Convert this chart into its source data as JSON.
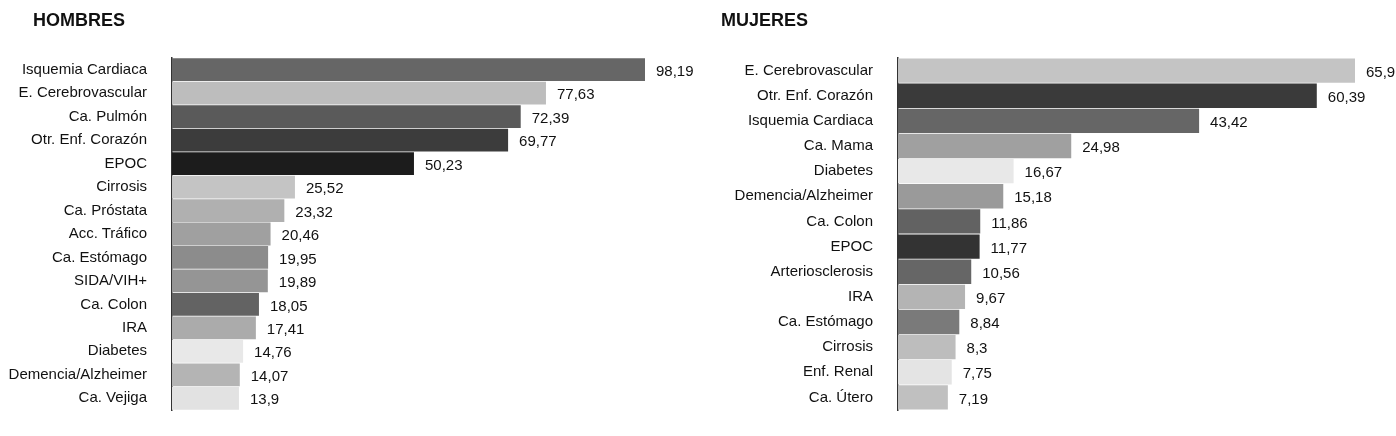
{
  "chart_data": [
    {
      "type": "bar",
      "orientation": "horizontal",
      "title": "HOMBRES",
      "tick_labels": "y",
      "categories": [
        "Isquemia Cardiaca",
        "E. Cerebrovascular",
        "Ca. Pulmón",
        "Otr. Enf. Corazón",
        "EPOC",
        "Cirrosis",
        "Ca. Próstata",
        "Acc. Tráfico",
        "Ca. Estómago",
        "SIDA/VIH+",
        "Ca. Colon",
        "IRA",
        "Diabetes",
        "Demencia/Alzheimer",
        "Ca. Vejiga"
      ],
      "values": [
        98.19,
        77.63,
        72.39,
        69.77,
        50.23,
        25.52,
        23.32,
        20.46,
        19.95,
        19.89,
        18.05,
        17.41,
        14.76,
        14.07,
        13.9
      ],
      "value_labels": [
        "98,19",
        "77,63",
        "72,39",
        "69,77",
        "50,23",
        "25,52",
        "23,32",
        "20,46",
        "19,95",
        "19,89",
        "18,05",
        "17,41",
        "14,76",
        "14,07",
        "13,9"
      ],
      "colors": [
        "#666666",
        "#bdbdbd",
        "#5a5a5a",
        "#3c3c3c",
        "#1c1c1c",
        "#c4c4c4",
        "#b0b0b0",
        "#a0a0a0",
        "#8c8c8c",
        "#959595",
        "#636363",
        "#ababab",
        "#e8e8e8",
        "#b4b4b4",
        "#e2e2e2"
      ]
    },
    {
      "type": "bar",
      "orientation": "horizontal",
      "title": "MUJERES",
      "tick_labels": "y",
      "categories": [
        "E. Cerebrovascular",
        "Otr. Enf. Corazón",
        "Isquemia Cardiaca",
        "Ca. Mama",
        "Diabetes",
        "Demencia/Alzheimer",
        "Ca. Colon",
        "EPOC",
        "Arteriosclerosis",
        "IRA",
        "Ca. Estómago",
        "Cirrosis",
        "Enf. Renal",
        "Ca. Útero"
      ],
      "values": [
        65.9,
        60.39,
        43.42,
        24.98,
        16.67,
        15.18,
        11.86,
        11.77,
        10.56,
        9.67,
        8.84,
        8.3,
        7.75,
        7.19
      ],
      "value_labels": [
        "65,9",
        "60,39",
        "43,42",
        "24,98",
        "16,67",
        "15,18",
        "11,86",
        "11,77",
        "10,56",
        "9,67",
        "8,84",
        "8,3",
        "7,75",
        "7,19"
      ],
      "colors": [
        "#c4c4c4",
        "#3a3a3a",
        "#666666",
        "#a0a0a0",
        "#e8e8e8",
        "#9a9a9a",
        "#626262",
        "#333333",
        "#666666",
        "#b4b4b4",
        "#7a7a7a",
        "#bdbdbd",
        "#e4e4e4",
        "#c0c0c0"
      ]
    }
  ]
}
